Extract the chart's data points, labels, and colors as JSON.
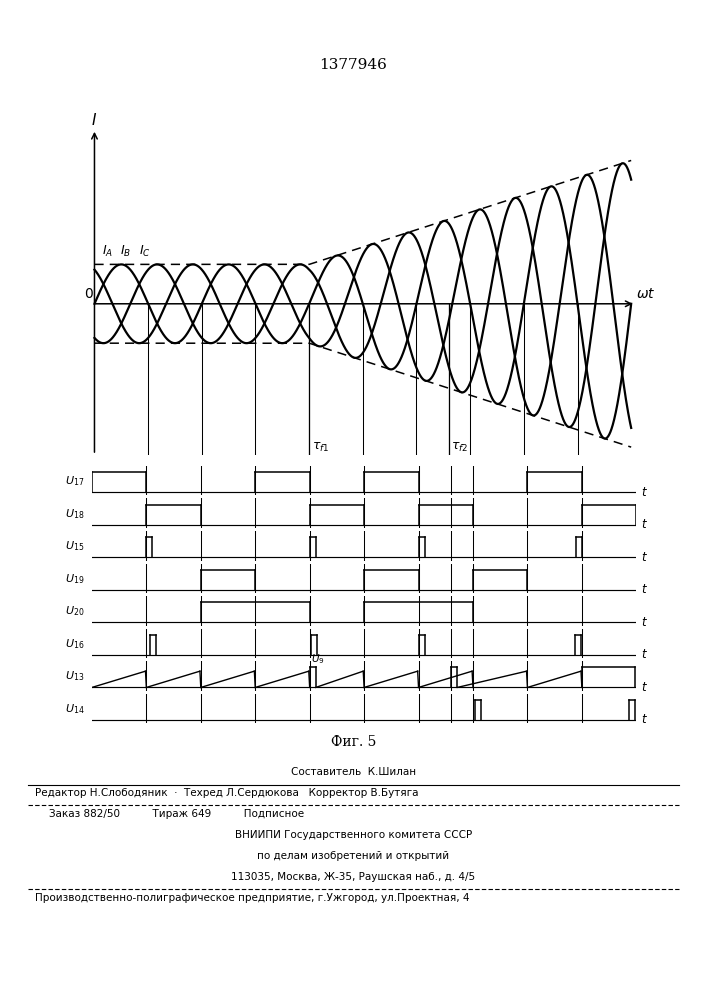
{
  "title": "1377946",
  "fig_label": "Фиг. 5",
  "bg_color": "#ffffff",
  "fig_width": 7.07,
  "fig_height": 10.0,
  "dpi": 100,
  "bottom_labels": [
    "U17",
    "U18",
    "U15",
    "U19",
    "U20",
    "U16",
    "U13",
    "U14"
  ],
  "bottom_labels_display": [
    "U₁₇",
    "U₁₈",
    "U₁₅",
    "U₁₉",
    "U₂₀",
    "U₁₆",
    "U₁₃",
    "U₁₄"
  ],
  "footer_line1": "Составитель  К.Шилан",
  "footer_line2": "Редактор Н.Слободяник  ·  Техред Л.Сердюкова   Корректор В.Бутяга",
  "footer_line3": "Заказ 882/50          Тираж 649          Подписное",
  "footer_line4": "ВНИИПИ Государственного комитета СССР",
  "footer_line5": "по делам изобретений и открытий",
  "footer_line6": "113035, Москва, Ж-35, Раушская наб., д. 4/5",
  "footer_line7": "Производственно-полиграфическое предприятие, г.Ужгород, ул.Проектная, 4"
}
